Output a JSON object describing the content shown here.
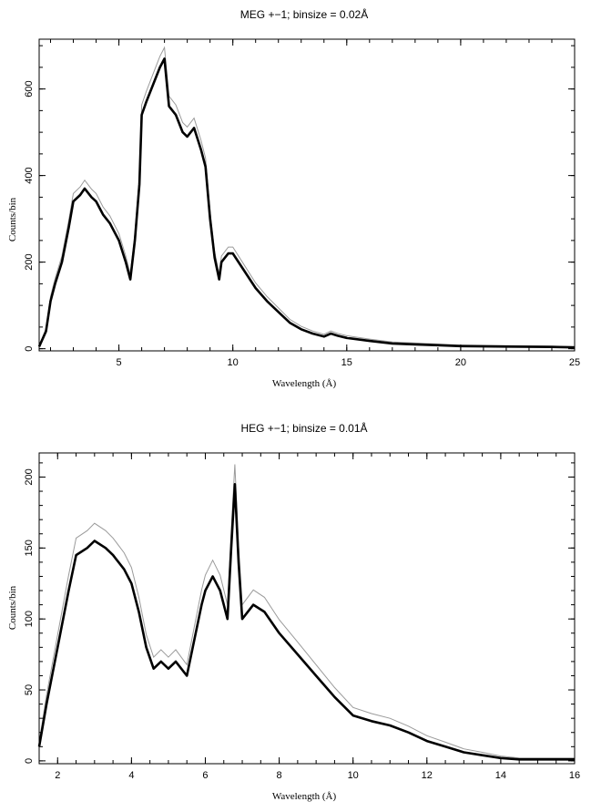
{
  "chart_data": [
    {
      "type": "line",
      "title": "MEG +−1; binsize = 0.02Å",
      "xlabel": "Wavelength (Å)",
      "ylabel": "Counts/bin",
      "xlim": [
        1.5,
        25
      ],
      "ylim": [
        -5,
        715
      ],
      "xticks": [
        5,
        10,
        15,
        20,
        25
      ],
      "yticks": [
        0,
        200,
        400,
        600
      ],
      "grid": false,
      "series": [
        {
          "x": [
            1.5,
            1.8,
            2.0,
            2.2,
            2.5,
            2.8,
            3.0,
            3.3,
            3.5,
            3.8,
            4.0,
            4.3,
            4.6,
            5.0,
            5.3,
            5.5,
            5.7,
            5.9,
            6.0,
            6.2,
            6.5,
            6.8,
            7.0,
            7.2,
            7.5,
            7.8,
            8.0,
            8.3,
            8.6,
            8.8,
            9.0,
            9.2,
            9.4,
            9.5,
            9.8,
            10.0,
            10.5,
            11.0,
            11.5,
            12.0,
            12.5,
            13.0,
            13.5,
            14.0,
            14.3,
            14.6,
            15.0,
            16.0,
            17.0,
            18.0,
            19.0,
            20.0,
            22.0,
            24.0,
            25.0
          ],
          "y": [
            5,
            40,
            110,
            150,
            200,
            280,
            340,
            355,
            370,
            350,
            340,
            310,
            290,
            250,
            200,
            160,
            250,
            380,
            540,
            570,
            610,
            650,
            670,
            560,
            540,
            500,
            490,
            510,
            460,
            420,
            300,
            210,
            160,
            200,
            220,
            220,
            180,
            140,
            110,
            85,
            60,
            45,
            35,
            28,
            35,
            30,
            25,
            18,
            12,
            10,
            8,
            6,
            5,
            4,
            3
          ]
        }
      ]
    },
    {
      "type": "line",
      "title": "HEG +−1; binsize = 0.01Å",
      "xlabel": "Wavelength (Å)",
      "ylabel": "Counts/bin",
      "xlim": [
        1.5,
        16
      ],
      "ylim": [
        -2,
        217
      ],
      "xticks": [
        2,
        4,
        6,
        8,
        10,
        12,
        14,
        16
      ],
      "yticks": [
        0,
        50,
        100,
        150,
        200
      ],
      "grid": false,
      "series": [
        {
          "x": [
            1.5,
            1.7,
            2.0,
            2.3,
            2.5,
            2.8,
            3.0,
            3.3,
            3.5,
            3.8,
            4.0,
            4.2,
            4.4,
            4.6,
            4.8,
            5.0,
            5.2,
            5.5,
            5.7,
            5.9,
            6.0,
            6.2,
            6.4,
            6.6,
            6.7,
            6.8,
            6.9,
            7.0,
            7.3,
            7.6,
            8.0,
            8.5,
            9.0,
            9.5,
            10.0,
            10.5,
            11.0,
            11.5,
            12.0,
            12.5,
            13.0,
            13.5,
            14.0,
            14.5,
            15.0,
            16.0
          ],
          "y": [
            10,
            40,
            80,
            120,
            145,
            150,
            155,
            150,
            145,
            135,
            125,
            105,
            80,
            65,
            70,
            65,
            70,
            60,
            85,
            110,
            120,
            130,
            120,
            100,
            150,
            195,
            140,
            100,
            110,
            105,
            90,
            75,
            60,
            45,
            32,
            28,
            25,
            20,
            14,
            10,
            6,
            4,
            2,
            1,
            1,
            1
          ]
        }
      ]
    }
  ]
}
